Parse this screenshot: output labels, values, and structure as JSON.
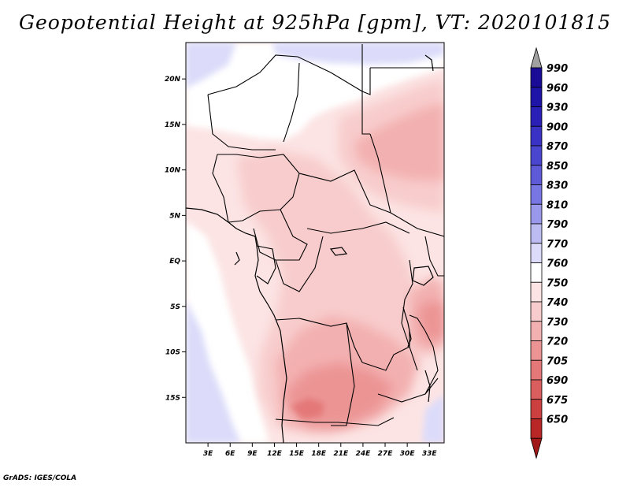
{
  "title": "Geopotential Height at 925hPa [gpm], VT: 2020101815",
  "credit": "GrADS: IGES/COLA",
  "map": {
    "lon_range": [
      0,
      35
    ],
    "lat_range": [
      -20,
      24
    ],
    "lat_ticks": [
      {
        "value": 20,
        "label": "20N"
      },
      {
        "value": 15,
        "label": "15N"
      },
      {
        "value": 10,
        "label": "10N"
      },
      {
        "value": 5,
        "label": "5N"
      },
      {
        "value": 0,
        "label": "EQ"
      },
      {
        "value": -5,
        "label": "5S"
      },
      {
        "value": -10,
        "label": "10S"
      },
      {
        "value": -15,
        "label": "15S"
      }
    ],
    "lon_ticks": [
      {
        "value": 3,
        "label": "3E"
      },
      {
        "value": 6,
        "label": "6E"
      },
      {
        "value": 9,
        "label": "9E"
      },
      {
        "value": 12,
        "label": "12E"
      },
      {
        "value": 15,
        "label": "15E"
      },
      {
        "value": 18,
        "label": "18E"
      },
      {
        "value": 21,
        "label": "21E"
      },
      {
        "value": 24,
        "label": "24E"
      },
      {
        "value": 27,
        "label": "27E"
      },
      {
        "value": 30,
        "label": "30E"
      },
      {
        "value": 33,
        "label": "33E"
      }
    ]
  },
  "colorbar": [
    {
      "label": "990",
      "color": "#1a0c96"
    },
    {
      "label": "960",
      "color": "#1e14a8"
    },
    {
      "label": "930",
      "color": "#2a20b8"
    },
    {
      "label": "900",
      "color": "#3a32c4"
    },
    {
      "label": "870",
      "color": "#4a46d0"
    },
    {
      "label": "850",
      "color": "#5e5ad8"
    },
    {
      "label": "830",
      "color": "#7876e2"
    },
    {
      "label": "810",
      "color": "#9a98ea"
    },
    {
      "label": "790",
      "color": "#bcbcf2"
    },
    {
      "label": "770",
      "color": "#dcdcfa"
    },
    {
      "label": "760",
      "color": "#ffffff"
    },
    {
      "label": "750",
      "color": "#fce4e4"
    },
    {
      "label": "740",
      "color": "#f8cccc"
    },
    {
      "label": "730",
      "color": "#f3b0b0"
    },
    {
      "label": "720",
      "color": "#ec9494"
    },
    {
      "label": "705",
      "color": "#e47878"
    },
    {
      "label": "690",
      "color": "#da5e5e"
    },
    {
      "label": "675",
      "color": "#cc4040"
    },
    {
      "label": "650",
      "color": "#b82626"
    }
  ],
  "colorbar_top_arrow_color": "#a0a0a0",
  "colorbar_bottom_arrow_color": "#a01818"
}
